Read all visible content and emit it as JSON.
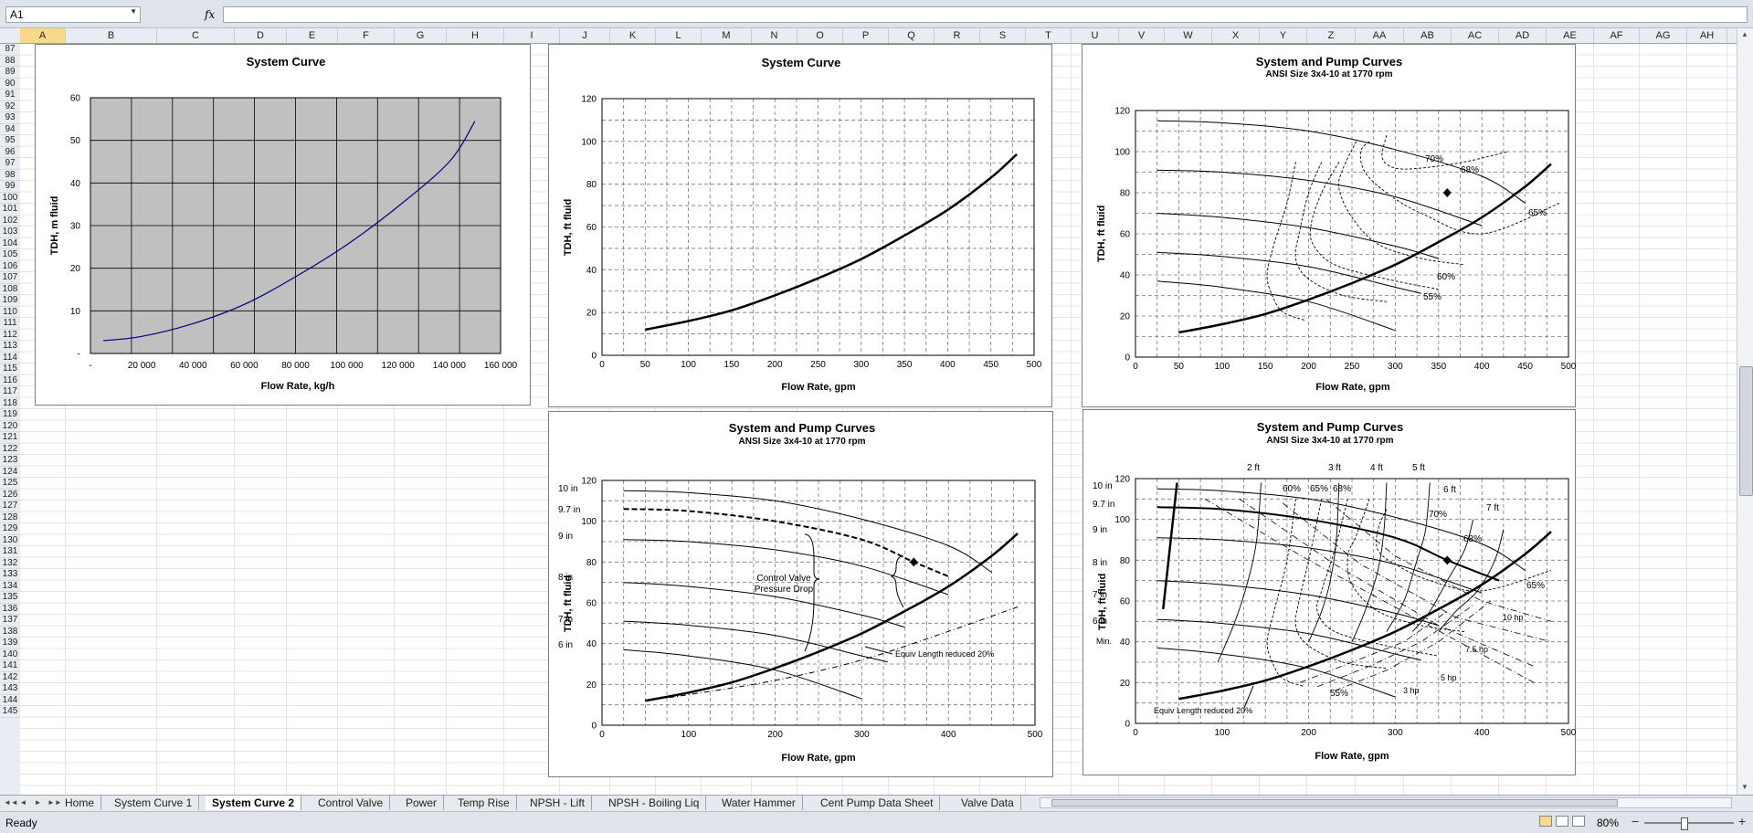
{
  "formula_bar": {
    "name_box": "A1",
    "fx_label": "fx",
    "formula": ""
  },
  "columns": [
    "A",
    "B",
    "C",
    "D",
    "E",
    "F",
    "G",
    "H",
    "I",
    "J",
    "K",
    "L",
    "M",
    "N",
    "O",
    "P",
    "Q",
    "R",
    "S",
    "T",
    "U",
    "V",
    "W",
    "X",
    "Y",
    "Z",
    "AA",
    "AB",
    "AC",
    "AD",
    "AE",
    "AF",
    "AG",
    "AH"
  ],
  "rows": [
    "87",
    "88",
    "89",
    "90",
    "91",
    "92",
    "93",
    "94",
    "95",
    "96",
    "97",
    "98",
    "99",
    "100",
    "101",
    "102",
    "103",
    "104",
    "105",
    "106",
    "107",
    "108",
    "109",
    "110",
    "111",
    "112",
    "113",
    "114",
    "115",
    "116",
    "117",
    "118",
    "119",
    "120",
    "121",
    "122",
    "123",
    "124",
    "125",
    "126",
    "127",
    "128",
    "129",
    "130",
    "131",
    "132",
    "133",
    "134",
    "135",
    "136",
    "137",
    "138",
    "139",
    "140",
    "141",
    "142",
    "143",
    "144",
    "145"
  ],
  "charts": {
    "c1": {
      "title": "System Curve",
      "xlabel": "Flow Rate, kg/h",
      "ylabel": "TDH, m fluid",
      "xticks": [
        "-",
        "20 000",
        "40 000",
        "60 000",
        "80 000",
        "100 000",
        "120 000",
        "140 000",
        "160 000"
      ],
      "yticks": [
        "-",
        "10",
        "20",
        "30",
        "40",
        "50",
        "60"
      ]
    },
    "c2": {
      "title": "System Curve",
      "xlabel": "Flow Rate, gpm",
      "ylabel": "TDH, ft fluid",
      "xticks": [
        "0",
        "50",
        "100",
        "150",
        "200",
        "250",
        "300",
        "350",
        "400",
        "450",
        "500"
      ],
      "yticks": [
        "0",
        "20",
        "40",
        "60",
        "80",
        "100",
        "120"
      ]
    },
    "c3": {
      "title": "System and Pump Curves",
      "subtitle": "ANSI  Size 3x4-10 at 1770 rpm",
      "xlabel": "Flow Rate, gpm",
      "ylabel": "TDH, ft fluid",
      "xticks": [
        "0",
        "50",
        "100",
        "150",
        "200",
        "250",
        "300",
        "350",
        "400",
        "450",
        "500"
      ],
      "yticks": [
        "0",
        "20",
        "40",
        "60",
        "80",
        "100",
        "120"
      ],
      "labels": {
        "e70": "70%",
        "e68": "68%",
        "e65": "65%",
        "e60": "60%",
        "e55": "55%"
      }
    },
    "c4": {
      "title": "System and Pump Curves",
      "subtitle": "ANSI  Size 3x4-10 at 1770 rpm",
      "xlabel": "Flow Rate, gpm",
      "ylabel": "TDH, ft fluid",
      "xticks": [
        "0",
        "100",
        "200",
        "300",
        "400",
        "500"
      ],
      "yticks": [
        "0",
        "20",
        "40",
        "60",
        "80",
        "100",
        "120"
      ],
      "labels": {
        "d10": "10 in",
        "d97": "9.7 in",
        "d9": "9 in",
        "d8": "8 in",
        "d7": "7 in",
        "d6": "6 in",
        "cv1": "Control Valve",
        "cv2": "Pressure Drop",
        "eq": "Equiv Length reduced 20%"
      }
    },
    "c5": {
      "title": "System and Pump Curves",
      "subtitle": "ANSI  Size 3x4-10 at 1770 rpm",
      "xlabel": "Flow Rate, gpm",
      "ylabel": "TDH, ft fluid",
      "xticks": [
        "0",
        "100",
        "200",
        "300",
        "400",
        "500"
      ],
      "yticks": [
        "0",
        "20",
        "40",
        "60",
        "80",
        "100",
        "120"
      ],
      "labels": {
        "d10": "10 in",
        "d97": "9.7 in",
        "d9": "9 in",
        "d8": "8 in",
        "d7": "7 in",
        "d6": "6 in",
        "min": "Min.",
        "n2": "2 ft",
        "n3": "3 ft",
        "n4": "4 ft",
        "n5": "5 ft",
        "n6": "6 ft",
        "n7": "7 ft",
        "e60": "60%",
        "e65t": "65%",
        "e68t": "68%",
        "e70": "70%",
        "e68": "68%",
        "e65": "65%",
        "e55": "55%",
        "h10": "10 hp",
        "h75": "7.5 hp",
        "h5": "5 hp",
        "h3": "3 hp",
        "eq": "Equiv Length reduced 20%"
      }
    }
  },
  "chart_data": [
    {
      "type": "line",
      "title": "System Curve",
      "xlabel": "Flow Rate, kg/h",
      "ylabel": "TDH, m fluid",
      "xlim": [
        0,
        160000
      ],
      "ylim": [
        0,
        60
      ],
      "grid": true,
      "series": [
        {
          "x": [
            5000,
            20000,
            40000,
            60000,
            80000,
            100000,
            120000,
            140000,
            150000
          ],
          "y": [
            3,
            4,
            7,
            11.5,
            18,
            25.5,
            34.5,
            45,
            54.5
          ]
        }
      ]
    },
    {
      "type": "line",
      "title": "System Curve",
      "xlabel": "Flow Rate, gpm",
      "ylabel": "TDH, ft fluid",
      "xlim": [
        0,
        500
      ],
      "ylim": [
        0,
        120
      ],
      "grid": true,
      "series": [
        {
          "x": [
            50,
            100,
            150,
            200,
            250,
            300,
            350,
            400,
            450,
            480
          ],
          "y": [
            12,
            16,
            21,
            28,
            36,
            45,
            56,
            68,
            83,
            94
          ]
        }
      ]
    },
    {
      "type": "line",
      "title": "System and Pump Curves",
      "subtitle": "ANSI  Size 3x4-10 at 1770 rpm",
      "xlabel": "Flow Rate, gpm",
      "ylabel": "TDH, ft fluid",
      "xlim": [
        0,
        500
      ],
      "ylim": [
        0,
        120
      ],
      "grid": true,
      "series": [
        {
          "x": [
            50,
            100,
            150,
            200,
            250,
            300,
            350,
            400,
            450,
            480
          ],
          "y": [
            12,
            16,
            21,
            28,
            36,
            45,
            56,
            68,
            83,
            94
          ]
        },
        {
          "x": [
            25,
            100,
            200,
            300,
            400,
            450
          ],
          "y": [
            115,
            114,
            110,
            101,
            88,
            75
          ]
        },
        {
          "x": [
            25,
            100,
            200,
            300,
            400
          ],
          "y": [
            91,
            90,
            86,
            78,
            64
          ]
        },
        {
          "x": [
            25,
            100,
            200,
            300,
            350
          ],
          "y": [
            70,
            68,
            63,
            54,
            48
          ]
        },
        {
          "x": [
            25,
            100,
            200,
            300,
            330
          ],
          "y": [
            51,
            49,
            44,
            34,
            31
          ]
        },
        {
          "x": [
            25,
            100,
            200,
            300
          ],
          "y": [
            37,
            34,
            27,
            13
          ]
        }
      ],
      "points": [
        {
          "x": 360,
          "y": 80
        }
      ]
    },
    {
      "type": "line",
      "title": "System and Pump Curves",
      "subtitle": "ANSI  Size 3x4-10 at 1770 rpm",
      "xlabel": "Flow Rate, gpm",
      "ylabel": "TDH, ft fluid",
      "xlim": [
        0,
        500
      ],
      "ylim": [
        0,
        120
      ],
      "grid": true,
      "series": [
        {
          "x": [
            50,
            100,
            150,
            200,
            250,
            300,
            350,
            400,
            450,
            480
          ],
          "y": [
            12,
            16,
            21,
            28,
            36,
            45,
            56,
            68,
            83,
            94
          ]
        },
        {
          "x": [
            50,
            100,
            200,
            300,
            400,
            480
          ],
          "y": [
            12,
            15,
            22,
            32,
            46,
            58
          ]
        },
        {
          "x": [
            25,
            100,
            200,
            300,
            400,
            450
          ],
          "y": [
            115,
            114,
            110,
            101,
            88,
            75
          ]
        },
        {
          "x": [
            25,
            100,
            200,
            300,
            360,
            400
          ],
          "y": [
            106,
            105,
            100,
            91,
            80,
            73
          ]
        },
        {
          "x": [
            25,
            100,
            200,
            300,
            400
          ],
          "y": [
            91,
            90,
            86,
            78,
            64
          ]
        },
        {
          "x": [
            25,
            100,
            200,
            300,
            350
          ],
          "y": [
            70,
            68,
            63,
            54,
            48
          ]
        },
        {
          "x": [
            25,
            100,
            200,
            300,
            330
          ],
          "y": [
            51,
            49,
            44,
            34,
            31
          ]
        },
        {
          "x": [
            25,
            100,
            200,
            300
          ],
          "y": [
            37,
            34,
            27,
            13
          ]
        }
      ],
      "points": [
        {
          "x": 360,
          "y": 80
        }
      ]
    },
    {
      "type": "line",
      "title": "System and Pump Curves",
      "subtitle": "ANSI  Size 3x4-10 at 1770 rpm",
      "xlabel": "Flow Rate, gpm",
      "ylabel": "TDH, ft fluid",
      "xlim": [
        0,
        500
      ],
      "ylim": [
        0,
        120
      ],
      "grid": true,
      "series": [
        {
          "x": [
            50,
            100,
            150,
            200,
            250,
            300,
            350,
            400,
            450,
            480
          ],
          "y": [
            12,
            16,
            21,
            28,
            36,
            45,
            56,
            68,
            83,
            94
          ]
        },
        {
          "x": [
            25,
            100,
            200,
            300,
            400,
            450
          ],
          "y": [
            115,
            114,
            110,
            101,
            88,
            75
          ]
        },
        {
          "x": [
            25,
            100,
            200,
            300,
            360,
            420
          ],
          "y": [
            106,
            105,
            100,
            91,
            80,
            70
          ]
        },
        {
          "x": [
            25,
            100,
            200,
            300,
            400
          ],
          "y": [
            91,
            90,
            86,
            78,
            64
          ]
        },
        {
          "x": [
            25,
            100,
            200,
            300,
            350
          ],
          "y": [
            70,
            68,
            63,
            54,
            48
          ]
        },
        {
          "x": [
            25,
            100,
            200,
            300,
            330
          ],
          "y": [
            51,
            49,
            44,
            34,
            31
          ]
        },
        {
          "x": [
            25,
            100,
            200,
            300
          ],
          "y": [
            37,
            34,
            27,
            13
          ]
        }
      ],
      "points": [
        {
          "x": 360,
          "y": 80
        }
      ]
    }
  ],
  "sheet_tabs": [
    "Home",
    "System Curve 1",
    "System Curve 2",
    "Control Valve",
    "Power",
    "Temp Rise",
    "NPSH - Lift",
    "NPSH - Boiling Liq",
    "Water Hammer",
    "Cent Pump Data Sheet",
    "Valve Data"
  ],
  "active_tab": "System Curve 2",
  "status": {
    "text": "Ready",
    "zoom": "80%",
    "zoom_minus": "−",
    "zoom_plus": "+"
  },
  "nav_buttons": [
    "◄◄",
    "◄",
    "►",
    "►►"
  ],
  "colors": {
    "chart1_plot_bg": "#c0c0c0",
    "chart1_line": "#000080",
    "active_cell_header": "#f8d98a"
  }
}
